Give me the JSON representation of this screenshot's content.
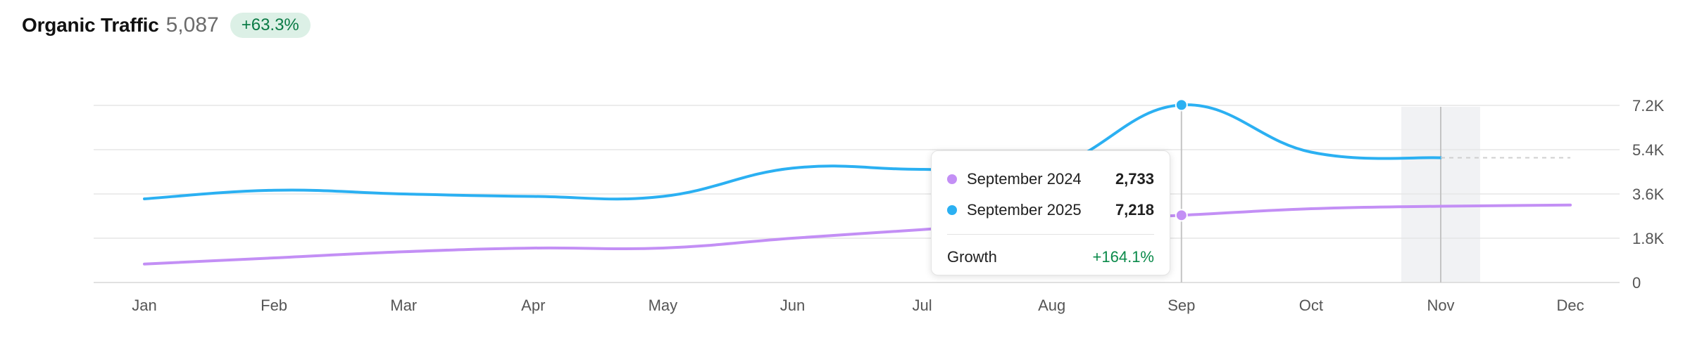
{
  "header": {
    "title": "Organic Traffic",
    "total": "5,087",
    "change": "+63.3%"
  },
  "colors": {
    "series_2024": "#c38ff5",
    "series_2025": "#2bb0f2",
    "growth": "#0a8a4a",
    "grid": "#e6e6e6",
    "hover_band": "#f1f2f4"
  },
  "chart_data": {
    "type": "line",
    "categories": [
      "Jan",
      "Feb",
      "Mar",
      "Apr",
      "May",
      "Jun",
      "Jul",
      "Aug",
      "Sep",
      "Oct",
      "Nov",
      "Dec"
    ],
    "yticks": [
      "0",
      "1.8K",
      "3.6K",
      "5.4K",
      "7.2K"
    ],
    "ylim": [
      0,
      7200
    ],
    "y_axis_side": "right",
    "grid": true,
    "series": [
      {
        "key": "y2024",
        "values": [
          750,
          1000,
          1250,
          1400,
          1400,
          1800,
          2150,
          2500,
          2733,
          3000,
          3100,
          3150
        ]
      },
      {
        "key": "y2025",
        "values": [
          3400,
          3750,
          3600,
          3500,
          3500,
          4650,
          4600,
          4700,
          7218,
          5300,
          5070,
          null
        ],
        "projection": [
          [
            10,
            5070
          ],
          [
            11,
            5070
          ]
        ]
      }
    ],
    "hover_band_category": "Nov",
    "hover_category": "Sep"
  },
  "tooltip": {
    "rows": [
      {
        "label": "September 2024",
        "value": "2,733"
      },
      {
        "label": "September 2025",
        "value": "7,218"
      }
    ],
    "growth_label": "Growth",
    "growth_value": "+164.1%"
  }
}
